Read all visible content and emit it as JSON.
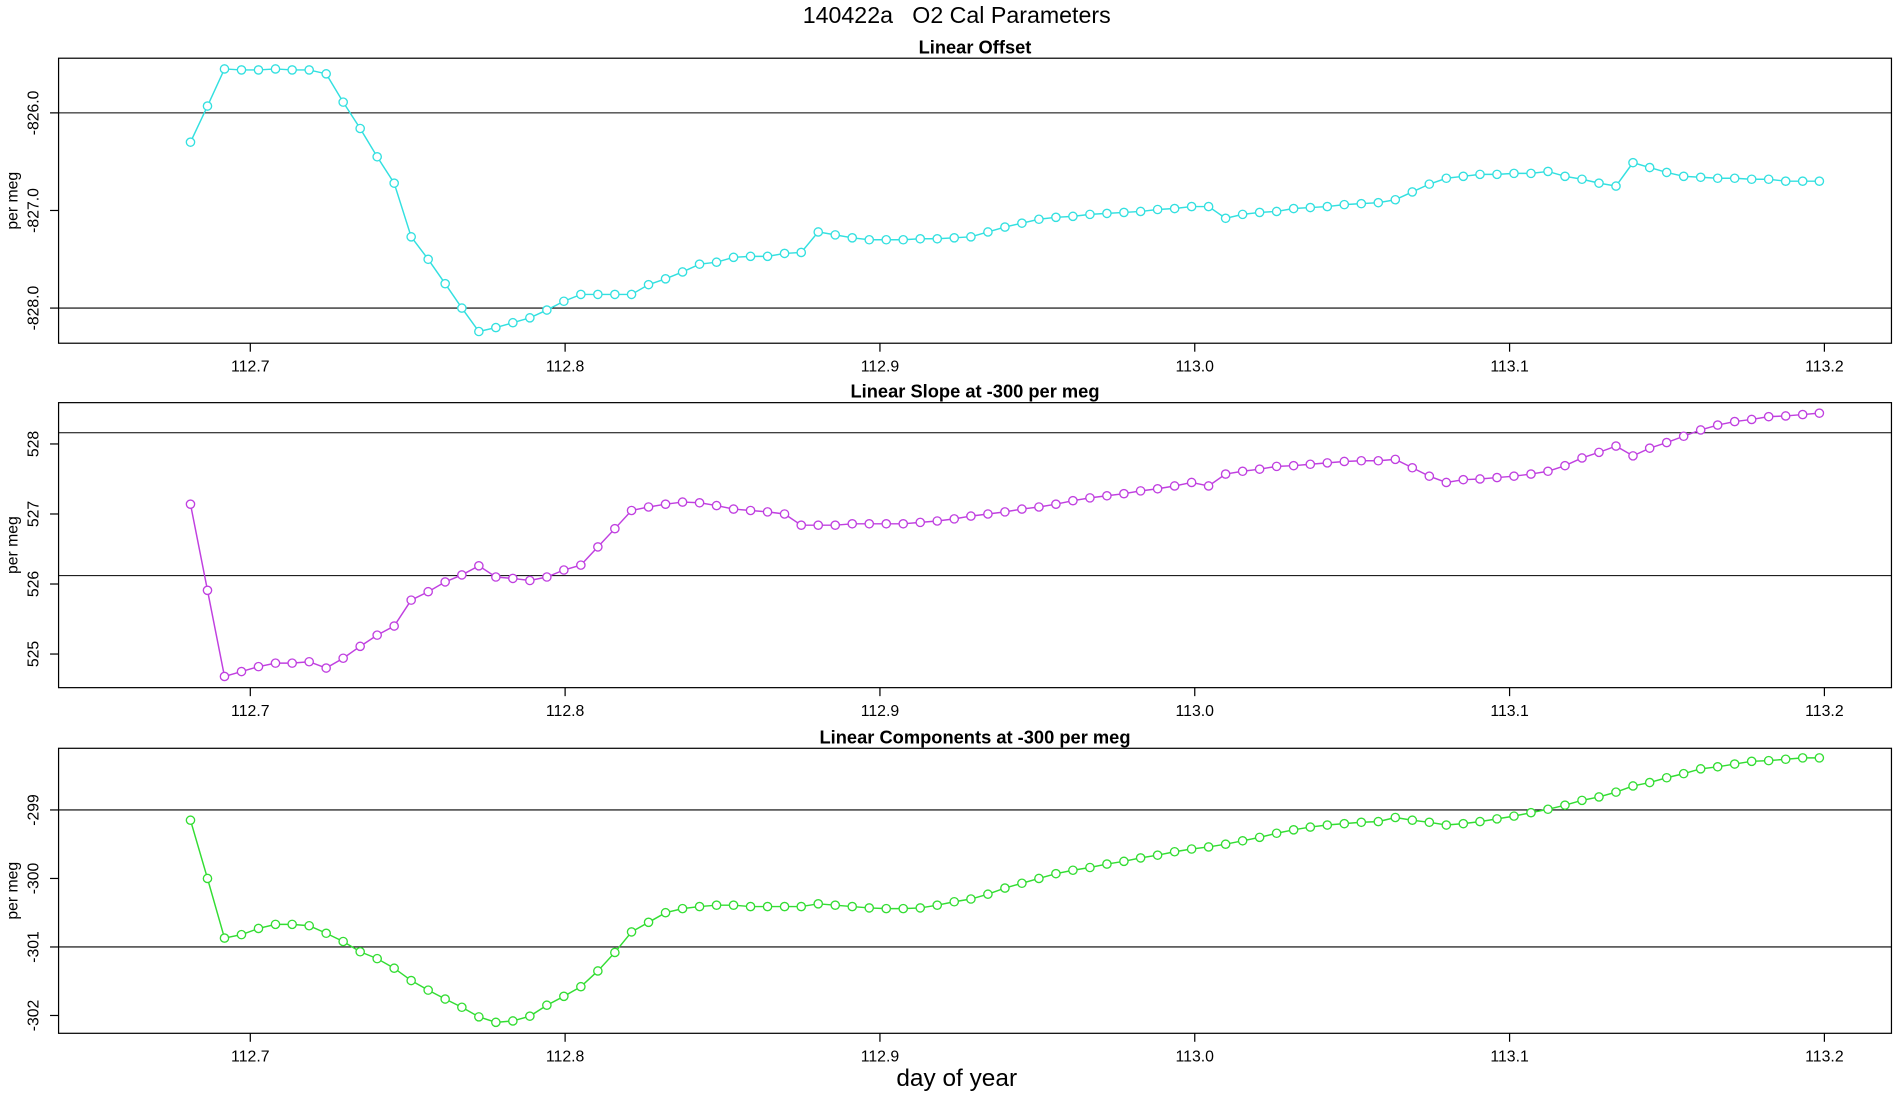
{
  "title": "140422a   O2 Cal Parameters",
  "xlabel": "day of year",
  "chart_data": [
    {
      "type": "line",
      "title": "Linear Offset",
      "ylabel": "per meg",
      "x": [
        112.681,
        112.6864,
        112.6918,
        112.6972,
        112.7026,
        112.708,
        112.7133,
        112.7187,
        112.7241,
        112.7295,
        112.7349,
        112.7403,
        112.7457,
        112.7511,
        112.7565,
        112.7619,
        112.7672,
        112.7726,
        112.778,
        112.7834,
        112.7888,
        112.7942,
        112.7996,
        112.805,
        112.8104,
        112.8158,
        112.8211,
        112.8265,
        112.8319,
        112.8373,
        112.8427,
        112.8481,
        112.8535,
        112.8589,
        112.8643,
        112.8697,
        112.875,
        112.8804,
        112.8858,
        112.8912,
        112.8966,
        112.902,
        112.9074,
        112.9128,
        112.9182,
        112.9236,
        112.9289,
        112.9343,
        112.9397,
        112.9451,
        112.9505,
        112.9559,
        112.9613,
        112.9667,
        112.9721,
        112.9775,
        112.9828,
        112.9882,
        112.9936,
        112.999,
        113.0044,
        113.0098,
        113.0152,
        113.0206,
        113.026,
        113.0314,
        113.0367,
        113.0421,
        113.0475,
        113.0529,
        113.0583,
        113.0637,
        113.0691,
        113.0745,
        113.0799,
        113.0853,
        113.0906,
        113.096,
        113.1014,
        113.1068,
        113.1122,
        113.1176,
        113.123,
        113.1284,
        113.1338,
        113.1392,
        113.1445,
        113.1499,
        113.1553,
        113.1607,
        113.1661,
        113.1715,
        113.1769,
        113.1823,
        113.1877,
        113.1931,
        113.1984
      ],
      "series": [
        {
          "color": "#33e0e0",
          "values": [
            -826.3,
            -825.93,
            -825.55,
            -825.56,
            -825.56,
            -825.55,
            -825.56,
            -825.56,
            -825.6,
            -825.89,
            -826.16,
            -826.45,
            -826.72,
            -827.27,
            -827.5,
            -827.75,
            -828.0,
            -828.24,
            -828.2,
            -828.15,
            -828.1,
            -828.02,
            -827.93,
            -827.86,
            -827.86,
            -827.86,
            -827.86,
            -827.76,
            -827.7,
            -827.63,
            -827.55,
            -827.53,
            -827.48,
            -827.47,
            -827.47,
            -827.44,
            -827.43,
            -827.22,
            -827.25,
            -827.28,
            -827.3,
            -827.3,
            -827.3,
            -827.29,
            -827.29,
            -827.28,
            -827.27,
            -827.22,
            -827.17,
            -827.13,
            -827.09,
            -827.07,
            -827.06,
            -827.04,
            -827.03,
            -827.02,
            -827.01,
            -826.99,
            -826.98,
            -826.96,
            -826.96,
            -827.08,
            -827.04,
            -827.02,
            -827.01,
            -826.98,
            -826.97,
            -826.96,
            -826.94,
            -826.93,
            -826.92,
            -826.89,
            -826.81,
            -826.73,
            -826.67,
            -826.65,
            -826.63,
            -826.63,
            -826.62,
            -826.62,
            -826.6,
            -826.65,
            -826.68,
            -826.72,
            -826.75,
            -826.51,
            -826.56,
            -826.61,
            -826.65,
            -826.66,
            -826.67,
            -826.67,
            -826.68,
            -826.68,
            -826.7,
            -826.7,
            -826.7
          ]
        }
      ],
      "xlim": [
        112.6391,
        113.2213
      ],
      "xticks": [
        112.7,
        112.8,
        112.9,
        {
          "value": 113.0,
          "label": "113.0"
        },
        113.1,
        113.2
      ],
      "ylim": [
        -828.36,
        -825.44
      ],
      "yticks": [
        {
          "value": -828,
          "label": "-828.0"
        },
        {
          "value": -827,
          "label": "-827.0"
        },
        {
          "value": -826,
          "label": "-826.0"
        }
      ],
      "hlines": [
        -826,
        -828
      ]
    },
    {
      "type": "line",
      "title": "Linear Slope at -300 per meg",
      "ylabel": "per meg",
      "x": [
        112.681,
        112.6864,
        112.6918,
        112.6972,
        112.7026,
        112.708,
        112.7133,
        112.7187,
        112.7241,
        112.7295,
        112.7349,
        112.7403,
        112.7457,
        112.7511,
        112.7565,
        112.7619,
        112.7672,
        112.7726,
        112.778,
        112.7834,
        112.7888,
        112.7942,
        112.7996,
        112.805,
        112.8104,
        112.8158,
        112.8211,
        112.8265,
        112.8319,
        112.8373,
        112.8427,
        112.8481,
        112.8535,
        112.8589,
        112.8643,
        112.8697,
        112.875,
        112.8804,
        112.8858,
        112.8912,
        112.8966,
        112.902,
        112.9074,
        112.9128,
        112.9182,
        112.9236,
        112.9289,
        112.9343,
        112.9397,
        112.9451,
        112.9505,
        112.9559,
        112.9613,
        112.9667,
        112.9721,
        112.9775,
        112.9828,
        112.9882,
        112.9936,
        112.999,
        113.0044,
        113.0098,
        113.0152,
        113.0206,
        113.026,
        113.0314,
        113.0367,
        113.0421,
        113.0475,
        113.0529,
        113.0583,
        113.0637,
        113.0691,
        113.0745,
        113.0799,
        113.0853,
        113.0906,
        113.096,
        113.1014,
        113.1068,
        113.1122,
        113.1176,
        113.123,
        113.1284,
        113.1338,
        113.1392,
        113.1445,
        113.1499,
        113.1553,
        113.1607,
        113.1661,
        113.1715,
        113.1769,
        113.1823,
        113.1877,
        113.1931,
        113.1984
      ],
      "series": [
        {
          "color": "#c040e0",
          "values": [
            527.14,
            525.91,
            524.68,
            524.75,
            524.82,
            524.87,
            524.87,
            524.89,
            524.8,
            524.94,
            525.11,
            525.27,
            525.4,
            525.77,
            525.89,
            526.03,
            526.13,
            526.26,
            526.1,
            526.08,
            526.05,
            526.1,
            526.2,
            526.27,
            526.53,
            526.79,
            527.05,
            527.1,
            527.14,
            527.17,
            527.16,
            527.12,
            527.07,
            527.05,
            527.03,
            527.0,
            526.84,
            526.84,
            526.84,
            526.86,
            526.86,
            526.86,
            526.86,
            526.88,
            526.9,
            526.93,
            526.97,
            527.0,
            527.03,
            527.07,
            527.1,
            527.14,
            527.19,
            527.23,
            527.26,
            527.29,
            527.33,
            527.36,
            527.4,
            527.45,
            527.4,
            527.57,
            527.61,
            527.64,
            527.68,
            527.69,
            527.71,
            527.73,
            527.75,
            527.76,
            527.76,
            527.78,
            527.66,
            527.54,
            527.45,
            527.49,
            527.5,
            527.52,
            527.54,
            527.57,
            527.61,
            527.69,
            527.8,
            527.88,
            527.97,
            527.83,
            527.94,
            528.02,
            528.11,
            528.2,
            528.27,
            528.32,
            528.35,
            528.39,
            528.4,
            528.42,
            528.44
          ]
        }
      ],
      "xlim": [
        112.6391,
        113.2213
      ],
      "xticks": [
        112.7,
        112.8,
        112.9,
        {
          "value": 113.0,
          "label": "113.0"
        },
        113.1,
        113.2
      ],
      "ylim": [
        524.52,
        528.59
      ],
      "yticks": [
        525,
        526,
        527,
        528
      ],
      "hlines": [
        528.16,
        526.12
      ]
    },
    {
      "type": "line",
      "title": "Linear Components at -300 per meg",
      "ylabel": "per meg",
      "x": [
        112.681,
        112.6864,
        112.6918,
        112.6972,
        112.7026,
        112.708,
        112.7133,
        112.7187,
        112.7241,
        112.7295,
        112.7349,
        112.7403,
        112.7457,
        112.7511,
        112.7565,
        112.7619,
        112.7672,
        112.7726,
        112.778,
        112.7834,
        112.7888,
        112.7942,
        112.7996,
        112.805,
        112.8104,
        112.8158,
        112.8211,
        112.8265,
        112.8319,
        112.8373,
        112.8427,
        112.8481,
        112.8535,
        112.8589,
        112.8643,
        112.8697,
        112.875,
        112.8804,
        112.8858,
        112.8912,
        112.8966,
        112.902,
        112.9074,
        112.9128,
        112.9182,
        112.9236,
        112.9289,
        112.9343,
        112.9397,
        112.9451,
        112.9505,
        112.9559,
        112.9613,
        112.9667,
        112.9721,
        112.9775,
        112.9828,
        112.9882,
        112.9936,
        112.999,
        113.0044,
        113.0098,
        113.0152,
        113.0206,
        113.026,
        113.0314,
        113.0367,
        113.0421,
        113.0475,
        113.0529,
        113.0583,
        113.0637,
        113.0691,
        113.0745,
        113.0799,
        113.0853,
        113.0906,
        113.096,
        113.1014,
        113.1068,
        113.1122,
        113.1176,
        113.123,
        113.1284,
        113.1338,
        113.1392,
        113.1445,
        113.1499,
        113.1553,
        113.1607,
        113.1661,
        113.1715,
        113.1769,
        113.1823,
        113.1877,
        113.1931,
        113.1984
      ],
      "series": [
        {
          "color": "#33dd33",
          "values": [
            -299.15,
            -300.0,
            -300.87,
            -300.82,
            -300.73,
            -300.67,
            -300.67,
            -300.69,
            -300.8,
            -300.92,
            -301.07,
            -301.17,
            -301.31,
            -301.49,
            -301.63,
            -301.76,
            -301.88,
            -302.02,
            -302.1,
            -302.08,
            -302.01,
            -301.85,
            -301.72,
            -301.58,
            -301.35,
            -301.08,
            -300.78,
            -300.64,
            -300.5,
            -300.44,
            -300.41,
            -300.39,
            -300.39,
            -300.41,
            -300.41,
            -300.41,
            -300.41,
            -300.37,
            -300.39,
            -300.41,
            -300.43,
            -300.44,
            -300.44,
            -300.43,
            -300.39,
            -300.34,
            -300.3,
            -300.23,
            -300.14,
            -300.07,
            -300.0,
            -299.93,
            -299.88,
            -299.84,
            -299.79,
            -299.75,
            -299.7,
            -299.66,
            -299.61,
            -299.57,
            -299.54,
            -299.5,
            -299.45,
            -299.4,
            -299.34,
            -299.29,
            -299.25,
            -299.22,
            -299.2,
            -299.18,
            -299.17,
            -299.11,
            -299.15,
            -299.18,
            -299.22,
            -299.2,
            -299.17,
            -299.13,
            -299.09,
            -299.04,
            -298.99,
            -298.93,
            -298.86,
            -298.81,
            -298.74,
            -298.65,
            -298.6,
            -298.53,
            -298.47,
            -298.4,
            -298.37,
            -298.33,
            -298.29,
            -298.28,
            -298.26,
            -298.24,
            -298.24
          ]
        }
      ],
      "xlim": [
        112.6391,
        113.2213
      ],
      "xticks": [
        112.7,
        112.8,
        112.9,
        {
          "value": 113.0,
          "label": "113.0"
        },
        113.1,
        113.2
      ],
      "ylim": [
        -302.26,
        -298.1
      ],
      "yticks": [
        -302,
        -301,
        -300,
        -299
      ],
      "hlines": [
        -299,
        -301
      ]
    }
  ]
}
